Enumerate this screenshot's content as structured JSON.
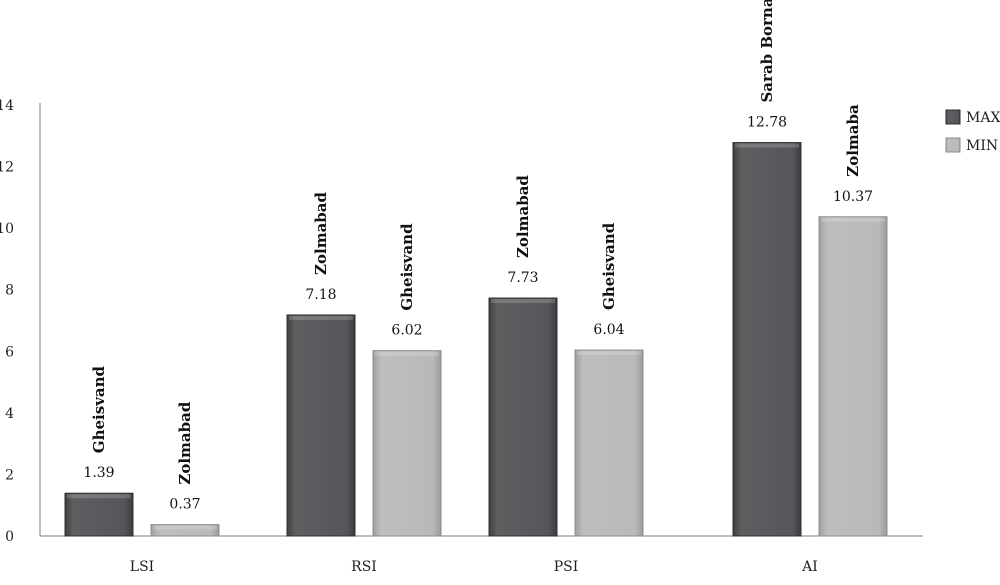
{
  "chart_data": {
    "type": "bar",
    "categories": [
      "LSI",
      "RSI",
      "PSI",
      "AI"
    ],
    "series": [
      {
        "name": "MAX",
        "color": "#58595b",
        "values": [
          1.39,
          7.18,
          7.73,
          12.78
        ],
        "value_labels": [
          "1.39",
          "7.18",
          "7.73",
          "12.78"
        ],
        "location_labels": [
          "Gheisvand",
          "Zolmabad",
          "Zolmabad",
          "Sarab Bornaj"
        ]
      },
      {
        "name": "MIN",
        "color": "#b5b6b6",
        "values": [
          0.37,
          6.02,
          6.04,
          10.37
        ],
        "value_labels": [
          "0.37",
          "6.02",
          "6.04",
          "10.37"
        ],
        "location_labels": [
          "Zolmabad",
          "Gheisvand",
          "Gheisvand",
          "Zolmaba"
        ]
      }
    ],
    "ylim": [
      0,
      14
    ],
    "yticks": [
      "0",
      "2",
      "4",
      "6",
      "8",
      "10",
      "12",
      "14"
    ],
    "legend_position": "top-right",
    "grid": false
  }
}
